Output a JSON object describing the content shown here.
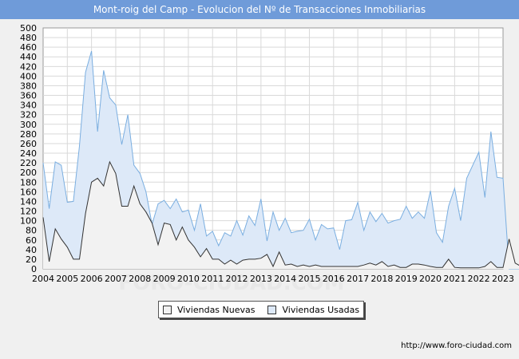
{
  "header": {
    "title": "Mont-roig del Camp - Evolucion del Nº de Transacciones Inmobiliarias"
  },
  "footer": {
    "url": "http://www.foro-ciudad.com"
  },
  "watermark": "FORO-CIUDAD.COM",
  "colors": {
    "title_bg": "#6f9bd9",
    "nuevas_line": "#333333",
    "nuevas_fill": "#f2f2f2",
    "usadas_line": "#7aaee0",
    "usadas_fill": "#dde9f8"
  },
  "chart_data": {
    "type": "area",
    "title": "Mont-roig del Camp - Evolucion del Nº de Transacciones Inmobiliarias",
    "xlabel": "",
    "ylabel": "",
    "x_start_year": 2004,
    "x_ticks": [
      "2004",
      "2005",
      "2006",
      "2007",
      "2008",
      "2009",
      "2010",
      "2011",
      "2012",
      "2013",
      "2014",
      "2015",
      "2016",
      "2017",
      "2018",
      "2019",
      "2020",
      "2021",
      "2022",
      "2023"
    ],
    "y_ticks": [
      0,
      20,
      40,
      60,
      80,
      100,
      120,
      140,
      160,
      180,
      200,
      220,
      240,
      260,
      280,
      300,
      320,
      340,
      360,
      380,
      400,
      420,
      440,
      460,
      480,
      500
    ],
    "ylim": [
      0,
      500
    ],
    "grid": true,
    "legend": "bottom",
    "series": [
      {
        "name": "Viviendas Nuevas",
        "values": [
          107,
          15,
          83,
          62,
          45,
          20,
          20,
          115,
          180,
          188,
          172,
          222,
          198,
          130,
          130,
          172,
          135,
          118,
          95,
          50,
          95,
          92,
          60,
          87,
          60,
          45,
          25,
          42,
          20,
          20,
          10,
          18,
          10,
          18,
          20,
          20,
          22,
          30,
          5,
          35,
          8,
          10,
          5,
          8,
          5,
          8,
          5,
          5,
          5,
          5,
          5,
          5,
          5,
          8,
          12,
          8,
          15,
          5,
          8,
          3,
          3,
          10,
          10,
          8,
          5,
          3,
          3,
          20,
          3,
          2,
          2,
          2,
          2,
          5,
          15,
          3,
          3,
          62,
          12,
          5
        ]
      },
      {
        "name": "Viviendas Usadas",
        "values": [
          220,
          125,
          222,
          215,
          138,
          140,
          255,
          408,
          452,
          285,
          412,
          355,
          340,
          258,
          320,
          215,
          198,
          160,
          92,
          135,
          142,
          125,
          145,
          118,
          122,
          80,
          135,
          68,
          78,
          48,
          75,
          68,
          100,
          70,
          110,
          90,
          145,
          58,
          118,
          80,
          105,
          75,
          78,
          80,
          103,
          60,
          92,
          83,
          85,
          40,
          100,
          102,
          138,
          80,
          118,
          98,
          115,
          95,
          100,
          103,
          130,
          105,
          118,
          105,
          162,
          75,
          55,
          130,
          167,
          100,
          188,
          215,
          242,
          148,
          285,
          190,
          188,
          0,
          0,
          0
        ]
      }
    ]
  },
  "legend": {
    "items": [
      "Viviendas Nuevas",
      "Viviendas Usadas"
    ]
  }
}
